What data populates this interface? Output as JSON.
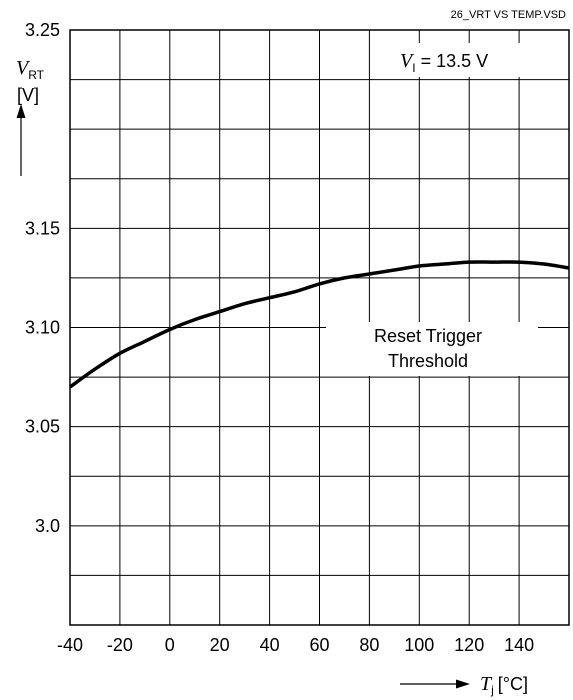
{
  "chart_data": {
    "type": "line",
    "file_name": "26_VRT VS TEMP.VSD",
    "ylabel": {
      "symbol": "V",
      "subscript": "RT",
      "unit": "[V]"
    },
    "xlabel": {
      "symbol": "T",
      "subscript": "j",
      "unit": "[°C]"
    },
    "condition": {
      "symbol": "V",
      "subscript": "I",
      "value": "= 13.5 V"
    },
    "annotation_lines": [
      "Reset Trigger",
      "Threshold"
    ],
    "xlim": [
      -40,
      160
    ],
    "ylim": [
      2.95,
      3.25
    ],
    "x_ticks": [
      -40,
      -20,
      0,
      20,
      40,
      60,
      80,
      100,
      120,
      140
    ],
    "x_tick_labels": [
      "-40",
      "-20",
      "0",
      "20",
      "40",
      "60",
      "80",
      "100",
      "120",
      "140"
    ],
    "y_ticks": [
      3.0,
      3.05,
      3.1,
      3.15,
      3.25
    ],
    "y_tick_labels": [
      "3.0",
      "3.05",
      "3.10",
      "3.15",
      "3.25"
    ],
    "grid": true,
    "series": [
      {
        "x": [
          -40,
          -30,
          -20,
          -10,
          0,
          10,
          20,
          30,
          40,
          50,
          60,
          70,
          80,
          90,
          100,
          110,
          120,
          130,
          140,
          150,
          160
        ],
        "y": [
          3.07,
          3.079,
          3.087,
          3.093,
          3.099,
          3.104,
          3.108,
          3.112,
          3.115,
          3.118,
          3.122,
          3.125,
          3.127,
          3.129,
          3.131,
          3.132,
          3.133,
          3.133,
          3.133,
          3.132,
          3.13
        ]
      }
    ]
  }
}
